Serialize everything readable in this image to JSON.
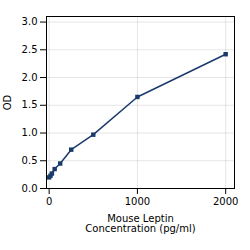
{
  "chart_data": {
    "type": "line",
    "xlabel": "Mouse Leptin\nConcentration (pg/ml)",
    "ylabel": "OD",
    "x": [
      0,
      15.6,
      31.2,
      62.5,
      125,
      250,
      500,
      1000,
      2000
    ],
    "values": [
      0.2,
      0.23,
      0.27,
      0.35,
      0.45,
      0.7,
      0.97,
      1.65,
      2.42
    ],
    "color": "#1a3a6b",
    "marker": "square",
    "xlim": [
      -30,
      2100
    ],
    "ylim": [
      0,
      3.1
    ],
    "xticks": [
      0,
      1000,
      2000
    ],
    "yticks": [
      {
        "value": 0,
        "label": "0.0"
      },
      0.5,
      {
        "value": 1.0,
        "label": "1.0"
      },
      1.5,
      {
        "value": 2.0,
        "label": "2.0"
      },
      2.5,
      {
        "value": 3.0,
        "label": "3.0"
      }
    ],
    "grid": true
  }
}
